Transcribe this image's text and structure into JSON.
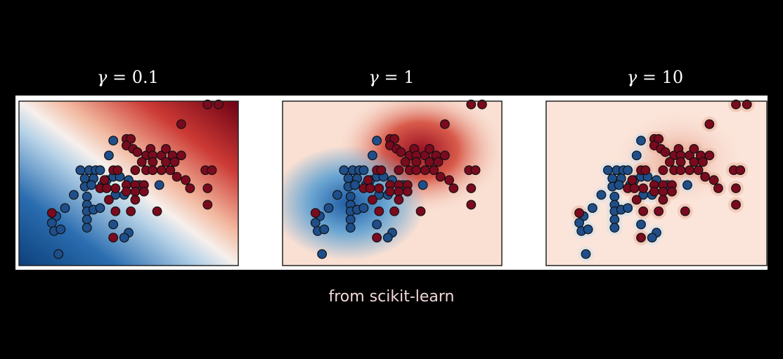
{
  "caption": "from scikit-learn",
  "colors": {
    "negative": "#1f4f8a",
    "positive": "#7a0a1e",
    "background": "#000000"
  },
  "chart_data": [
    {
      "type": "scatter",
      "title_symbol": "γ",
      "title_value": "0.1",
      "xlim": [
        0,
        1
      ],
      "ylim": [
        0,
        1
      ],
      "grid": false,
      "heatmap_center_blue": [
        0.1,
        0.28
      ],
      "heatmap_center_red": [
        0.9,
        0.9
      ],
      "series": [
        {
          "class": "blue",
          "points": [
            [
              0.41,
              0.67
            ],
            [
              0.43,
              0.76
            ],
            [
              0.28,
              0.58
            ],
            [
              0.32,
              0.58
            ],
            [
              0.35,
              0.58
            ],
            [
              0.37,
              0.58
            ],
            [
              0.3,
              0.53
            ],
            [
              0.34,
              0.53
            ],
            [
              0.25,
              0.43
            ],
            [
              0.3,
              0.48
            ],
            [
              0.33,
              0.49
            ],
            [
              0.38,
              0.49
            ],
            [
              0.4,
              0.52
            ],
            [
              0.43,
              0.54
            ],
            [
              0.46,
              0.54
            ],
            [
              0.5,
              0.52
            ],
            [
              0.55,
              0.49
            ],
            [
              0.21,
              0.35
            ],
            [
              0.17,
              0.3
            ],
            [
              0.15,
              0.26
            ],
            [
              0.16,
              0.21
            ],
            [
              0.19,
              0.22
            ],
            [
              0.31,
              0.42
            ],
            [
              0.31,
              0.37
            ],
            [
              0.31,
              0.33
            ],
            [
              0.31,
              0.28
            ],
            [
              0.31,
              0.23
            ],
            [
              0.34,
              0.34
            ],
            [
              0.37,
              0.35
            ],
            [
              0.43,
              0.25
            ],
            [
              0.5,
              0.2
            ],
            [
              0.48,
              0.17
            ],
            [
              0.18,
              0.07
            ],
            [
              0.64,
              0.49
            ],
            [
              0.44,
              0.43
            ],
            [
              0.48,
              0.43
            ]
          ]
        },
        {
          "class": "red",
          "points": [
            [
              0.86,
              0.98
            ],
            [
              0.91,
              0.98
            ],
            [
              0.74,
              0.86
            ],
            [
              0.49,
              0.77
            ],
            [
              0.51,
              0.77
            ],
            [
              0.49,
              0.73
            ],
            [
              0.52,
              0.71
            ],
            [
              0.54,
              0.69
            ],
            [
              0.58,
              0.67
            ],
            [
              0.6,
              0.71
            ],
            [
              0.61,
              0.67
            ],
            [
              0.65,
              0.67
            ],
            [
              0.67,
              0.71
            ],
            [
              0.7,
              0.67
            ],
            [
              0.74,
              0.67
            ],
            [
              0.56,
              0.63
            ],
            [
              0.61,
              0.63
            ],
            [
              0.67,
              0.63
            ],
            [
              0.71,
              0.63
            ],
            [
              0.43,
              0.58
            ],
            [
              0.45,
              0.58
            ],
            [
              0.53,
              0.58
            ],
            [
              0.58,
              0.58
            ],
            [
              0.61,
              0.58
            ],
            [
              0.65,
              0.58
            ],
            [
              0.69,
              0.58
            ],
            [
              0.85,
              0.58
            ],
            [
              0.88,
              0.58
            ],
            [
              0.72,
              0.54
            ],
            [
              0.76,
              0.52
            ],
            [
              0.39,
              0.52
            ],
            [
              0.49,
              0.49
            ],
            [
              0.53,
              0.49
            ],
            [
              0.57,
              0.49
            ],
            [
              0.37,
              0.47
            ],
            [
              0.4,
              0.47
            ],
            [
              0.44,
              0.47
            ],
            [
              0.49,
              0.45
            ],
            [
              0.53,
              0.45
            ],
            [
              0.57,
              0.45
            ],
            [
              0.78,
              0.47
            ],
            [
              0.86,
              0.47
            ],
            [
              0.41,
              0.4
            ],
            [
              0.53,
              0.4
            ],
            [
              0.44,
              0.33
            ],
            [
              0.51,
              0.33
            ],
            [
              0.63,
              0.33
            ],
            [
              0.86,
              0.37
            ],
            [
              0.15,
              0.32
            ],
            [
              0.43,
              0.17
            ]
          ]
        }
      ]
    },
    {
      "type": "scatter",
      "title_symbol": "γ",
      "title_value": "1",
      "xlim": [
        0,
        1
      ],
      "ylim": [
        0,
        1
      ],
      "grid": false,
      "series": [
        {
          "class": "blue",
          "points": [
            [
              0.41,
              0.67
            ],
            [
              0.43,
              0.76
            ],
            [
              0.28,
              0.58
            ],
            [
              0.32,
              0.58
            ],
            [
              0.35,
              0.58
            ],
            [
              0.37,
              0.58
            ],
            [
              0.3,
              0.53
            ],
            [
              0.34,
              0.53
            ],
            [
              0.25,
              0.43
            ],
            [
              0.3,
              0.48
            ],
            [
              0.33,
              0.49
            ],
            [
              0.38,
              0.49
            ],
            [
              0.4,
              0.52
            ],
            [
              0.43,
              0.54
            ],
            [
              0.46,
              0.54
            ],
            [
              0.5,
              0.52
            ],
            [
              0.55,
              0.49
            ],
            [
              0.21,
              0.35
            ],
            [
              0.17,
              0.3
            ],
            [
              0.15,
              0.26
            ],
            [
              0.16,
              0.21
            ],
            [
              0.19,
              0.22
            ],
            [
              0.31,
              0.42
            ],
            [
              0.31,
              0.37
            ],
            [
              0.31,
              0.33
            ],
            [
              0.31,
              0.28
            ],
            [
              0.31,
              0.23
            ],
            [
              0.34,
              0.34
            ],
            [
              0.37,
              0.35
            ],
            [
              0.43,
              0.25
            ],
            [
              0.5,
              0.2
            ],
            [
              0.48,
              0.17
            ],
            [
              0.18,
              0.07
            ],
            [
              0.64,
              0.49
            ],
            [
              0.44,
              0.43
            ],
            [
              0.48,
              0.43
            ]
          ]
        },
        {
          "class": "red",
          "points": [
            [
              0.86,
              0.98
            ],
            [
              0.91,
              0.98
            ],
            [
              0.74,
              0.86
            ],
            [
              0.49,
              0.77
            ],
            [
              0.51,
              0.77
            ],
            [
              0.49,
              0.73
            ],
            [
              0.52,
              0.71
            ],
            [
              0.54,
              0.69
            ],
            [
              0.58,
              0.67
            ],
            [
              0.6,
              0.71
            ],
            [
              0.61,
              0.67
            ],
            [
              0.65,
              0.67
            ],
            [
              0.67,
              0.71
            ],
            [
              0.7,
              0.67
            ],
            [
              0.74,
              0.67
            ],
            [
              0.56,
              0.63
            ],
            [
              0.61,
              0.63
            ],
            [
              0.67,
              0.63
            ],
            [
              0.71,
              0.63
            ],
            [
              0.43,
              0.58
            ],
            [
              0.45,
              0.58
            ],
            [
              0.53,
              0.58
            ],
            [
              0.58,
              0.58
            ],
            [
              0.61,
              0.58
            ],
            [
              0.65,
              0.58
            ],
            [
              0.69,
              0.58
            ],
            [
              0.85,
              0.58
            ],
            [
              0.88,
              0.58
            ],
            [
              0.72,
              0.54
            ],
            [
              0.76,
              0.52
            ],
            [
              0.39,
              0.52
            ],
            [
              0.49,
              0.49
            ],
            [
              0.53,
              0.49
            ],
            [
              0.57,
              0.49
            ],
            [
              0.37,
              0.47
            ],
            [
              0.4,
              0.47
            ],
            [
              0.44,
              0.47
            ],
            [
              0.49,
              0.45
            ],
            [
              0.53,
              0.45
            ],
            [
              0.57,
              0.45
            ],
            [
              0.78,
              0.47
            ],
            [
              0.86,
              0.47
            ],
            [
              0.41,
              0.4
            ],
            [
              0.53,
              0.4
            ],
            [
              0.44,
              0.33
            ],
            [
              0.51,
              0.33
            ],
            [
              0.63,
              0.33
            ],
            [
              0.86,
              0.37
            ],
            [
              0.15,
              0.32
            ],
            [
              0.43,
              0.17
            ]
          ]
        }
      ]
    },
    {
      "type": "scatter",
      "title_symbol": "γ",
      "title_value": "10",
      "xlim": [
        0,
        1
      ],
      "ylim": [
        0,
        1
      ],
      "grid": false,
      "series": [
        {
          "class": "blue",
          "points": [
            [
              0.41,
              0.67
            ],
            [
              0.43,
              0.76
            ],
            [
              0.28,
              0.58
            ],
            [
              0.32,
              0.58
            ],
            [
              0.35,
              0.58
            ],
            [
              0.37,
              0.58
            ],
            [
              0.3,
              0.53
            ],
            [
              0.34,
              0.53
            ],
            [
              0.25,
              0.43
            ],
            [
              0.3,
              0.48
            ],
            [
              0.33,
              0.49
            ],
            [
              0.38,
              0.49
            ],
            [
              0.4,
              0.52
            ],
            [
              0.43,
              0.54
            ],
            [
              0.46,
              0.54
            ],
            [
              0.5,
              0.52
            ],
            [
              0.55,
              0.49
            ],
            [
              0.21,
              0.35
            ],
            [
              0.17,
              0.3
            ],
            [
              0.15,
              0.26
            ],
            [
              0.16,
              0.21
            ],
            [
              0.19,
              0.22
            ],
            [
              0.31,
              0.42
            ],
            [
              0.31,
              0.37
            ],
            [
              0.31,
              0.33
            ],
            [
              0.31,
              0.28
            ],
            [
              0.31,
              0.23
            ],
            [
              0.34,
              0.34
            ],
            [
              0.37,
              0.35
            ],
            [
              0.43,
              0.25
            ],
            [
              0.5,
              0.2
            ],
            [
              0.48,
              0.17
            ],
            [
              0.18,
              0.07
            ],
            [
              0.64,
              0.49
            ],
            [
              0.44,
              0.43
            ],
            [
              0.48,
              0.43
            ]
          ]
        },
        {
          "class": "red",
          "points": [
            [
              0.86,
              0.98
            ],
            [
              0.91,
              0.98
            ],
            [
              0.74,
              0.86
            ],
            [
              0.49,
              0.77
            ],
            [
              0.51,
              0.77
            ],
            [
              0.49,
              0.73
            ],
            [
              0.52,
              0.71
            ],
            [
              0.54,
              0.69
            ],
            [
              0.58,
              0.67
            ],
            [
              0.6,
              0.71
            ],
            [
              0.61,
              0.67
            ],
            [
              0.65,
              0.67
            ],
            [
              0.67,
              0.71
            ],
            [
              0.7,
              0.67
            ],
            [
              0.74,
              0.67
            ],
            [
              0.56,
              0.63
            ],
            [
              0.61,
              0.63
            ],
            [
              0.67,
              0.63
            ],
            [
              0.71,
              0.63
            ],
            [
              0.43,
              0.58
            ],
            [
              0.45,
              0.58
            ],
            [
              0.53,
              0.58
            ],
            [
              0.58,
              0.58
            ],
            [
              0.61,
              0.58
            ],
            [
              0.65,
              0.58
            ],
            [
              0.69,
              0.58
            ],
            [
              0.85,
              0.58
            ],
            [
              0.88,
              0.58
            ],
            [
              0.72,
              0.54
            ],
            [
              0.76,
              0.52
            ],
            [
              0.39,
              0.52
            ],
            [
              0.49,
              0.49
            ],
            [
              0.53,
              0.49
            ],
            [
              0.57,
              0.49
            ],
            [
              0.37,
              0.47
            ],
            [
              0.4,
              0.47
            ],
            [
              0.44,
              0.47
            ],
            [
              0.49,
              0.45
            ],
            [
              0.53,
              0.45
            ],
            [
              0.57,
              0.45
            ],
            [
              0.78,
              0.47
            ],
            [
              0.86,
              0.47
            ],
            [
              0.41,
              0.4
            ],
            [
              0.53,
              0.4
            ],
            [
              0.44,
              0.33
            ],
            [
              0.51,
              0.33
            ],
            [
              0.63,
              0.33
            ],
            [
              0.86,
              0.37
            ],
            [
              0.15,
              0.32
            ],
            [
              0.43,
              0.17
            ]
          ]
        }
      ]
    }
  ]
}
